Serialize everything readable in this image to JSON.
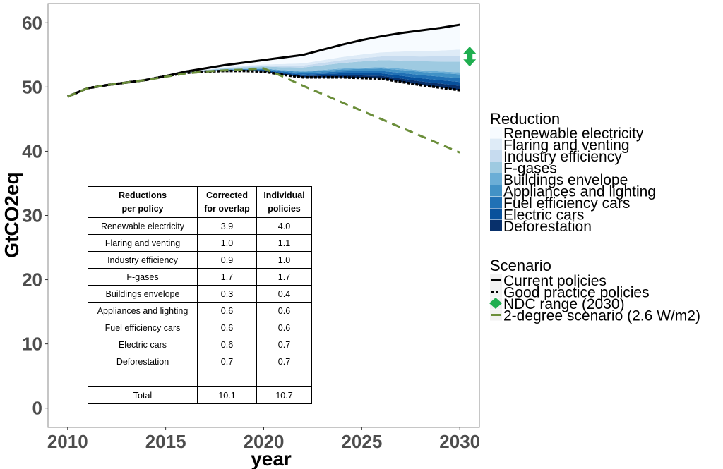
{
  "chart_data": {
    "type": "area",
    "xlabel": "year",
    "ylabel": "GtCO2eq",
    "xlim": [
      2009.0,
      2031.0
    ],
    "ylim": [
      -3.0,
      63.0
    ],
    "xticks": [
      2010,
      2015,
      2020,
      2025,
      2030
    ],
    "yticks": [
      0,
      10,
      20,
      30,
      40,
      50,
      60
    ],
    "grid": false,
    "legend_placement": "right",
    "x": [
      2010,
      2011,
      2012,
      2013,
      2014,
      2015,
      2016,
      2017,
      2018,
      2019,
      2020,
      2021,
      2022,
      2023,
      2024,
      2025,
      2026,
      2027,
      2028,
      2029,
      2030
    ],
    "lines": [
      {
        "name": "Current policies",
        "color": "#000000",
        "style": "solid",
        "values": [
          48.5,
          49.8,
          50.3,
          50.7,
          51.1,
          51.7,
          52.4,
          52.9,
          53.4,
          53.8,
          54.2,
          54.6,
          55.0,
          55.8,
          56.6,
          57.3,
          57.9,
          58.4,
          58.8,
          59.2,
          59.7
        ]
      },
      {
        "name": "Good practice policies",
        "color": "#000000",
        "style": "dotted",
        "values": [
          48.5,
          49.8,
          50.3,
          50.7,
          51.1,
          51.7,
          52.2,
          52.4,
          52.5,
          52.5,
          52.4,
          51.9,
          51.5,
          51.5,
          51.5,
          51.4,
          51.3,
          50.8,
          50.3,
          49.9,
          49.5
        ]
      },
      {
        "name": "2-degree scenario (2.6 W/m2)",
        "color": "#6b8e3a",
        "style": "dashed",
        "values": [
          48.5,
          49.8,
          50.3,
          50.7,
          51.1,
          51.6,
          52.1,
          52.4,
          52.6,
          52.7,
          52.9,
          51.6,
          50.2,
          48.9,
          47.6,
          46.3,
          45.0,
          43.7,
          42.4,
          41.1,
          39.8
        ]
      }
    ],
    "ndc_range": {
      "name": "NDC range (2030)",
      "year": 2030,
      "low": 53.2,
      "high": 56.3,
      "color": "#1fae4f"
    },
    "reduction_title": "Reduction",
    "scenario_title": "Scenario",
    "reductions": [
      {
        "name": "Renewable electricity",
        "color": "#f7fbff",
        "value_2030": 3.9
      },
      {
        "name": "Flaring and venting",
        "color": "#deebf7",
        "value_2030": 1.0
      },
      {
        "name": "Industry efficiency",
        "color": "#c6dbef",
        "value_2030": 0.9
      },
      {
        "name": "F-gases",
        "color": "#9ecae1",
        "value_2030": 1.7
      },
      {
        "name": "Buildings envelope",
        "color": "#6baed6",
        "value_2030": 0.3
      },
      {
        "name": "Appliances and lighting",
        "color": "#4292c6",
        "value_2030": 0.6
      },
      {
        "name": "Fuel efficiency cars",
        "color": "#2171b5",
        "value_2030": 0.6
      },
      {
        "name": "Electric cars",
        "color": "#08519c",
        "value_2030": 0.6
      },
      {
        "name": "Deforestation",
        "color": "#08306b",
        "value_2030": 0.7
      }
    ],
    "scenario_legend": [
      "Current policies",
      "Good practice policies",
      "NDC range (2030)",
      "2-degree scenario (2.6 W/m2)"
    ]
  },
  "table": {
    "headers": [
      "Reductions\nper policy",
      "Corrected\nfor overlap",
      "Individual\npolicies"
    ],
    "rows": [
      [
        "Renewable electricity",
        "3.9",
        "4.0"
      ],
      [
        "Flaring and venting",
        "1.0",
        "1.1"
      ],
      [
        "Industry efficiency",
        "0.9",
        "1.0"
      ],
      [
        "F-gases",
        "1.7",
        "1.7"
      ],
      [
        "Buildings envelope",
        "0.3",
        "0.4"
      ],
      [
        "Appliances and lighting",
        "0.6",
        "0.6"
      ],
      [
        "Fuel efficiency cars",
        "0.6",
        "0.6"
      ],
      [
        "Electric cars",
        "0.6",
        "0.7"
      ],
      [
        "Deforestation",
        "0.7",
        "0.7"
      ],
      [
        "",
        "",
        ""
      ],
      [
        "Total",
        "10.1",
        "10.7"
      ]
    ]
  }
}
